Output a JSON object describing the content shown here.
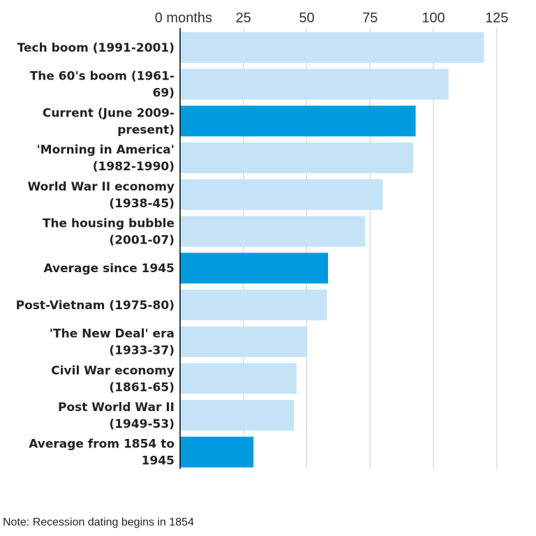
{
  "chart_data": {
    "type": "bar",
    "orientation": "horizontal",
    "title": "",
    "xlabel": "",
    "ylabel": "",
    "xlim": [
      0,
      125
    ],
    "x_unit": "months",
    "ticks": [
      0,
      25,
      50,
      75,
      100,
      125
    ],
    "tick_labels": [
      "0 months",
      "25",
      "50",
      "75",
      "100",
      "125"
    ],
    "grid": true,
    "categories": [
      [
        "Tech boom (1991-2001)"
      ],
      [
        "The 60's boom (1961-",
        "69)"
      ],
      [
        "Current (June 2009-",
        "present)"
      ],
      [
        "'Morning in America'",
        "(1982-1990)"
      ],
      [
        "World War II economy",
        "(1938-45)"
      ],
      [
        "The housing bubble",
        "(2001-07)"
      ],
      [
        "Average since 1945"
      ],
      [
        "Post-Vietnam (1975-80)"
      ],
      [
        "'The New Deal' era",
        "(1933-37)"
      ],
      [
        "Civil War economy",
        "(1861-65)"
      ],
      [
        "Post World War II",
        "(1949-53)"
      ],
      [
        "Average from 1854 to",
        "1945"
      ]
    ],
    "values": [
      120,
      106,
      93,
      92,
      80,
      73,
      58.4,
      58,
      50,
      46,
      45,
      29
    ],
    "highlighted": [
      false,
      false,
      true,
      false,
      false,
      false,
      true,
      false,
      false,
      false,
      false,
      true
    ],
    "colors": {
      "default": "#c5e3f6",
      "highlight": "#009bde",
      "gridline": "#cccccc",
      "axis": "#000000"
    }
  },
  "note": "Note: Recession dating begins in 1854"
}
